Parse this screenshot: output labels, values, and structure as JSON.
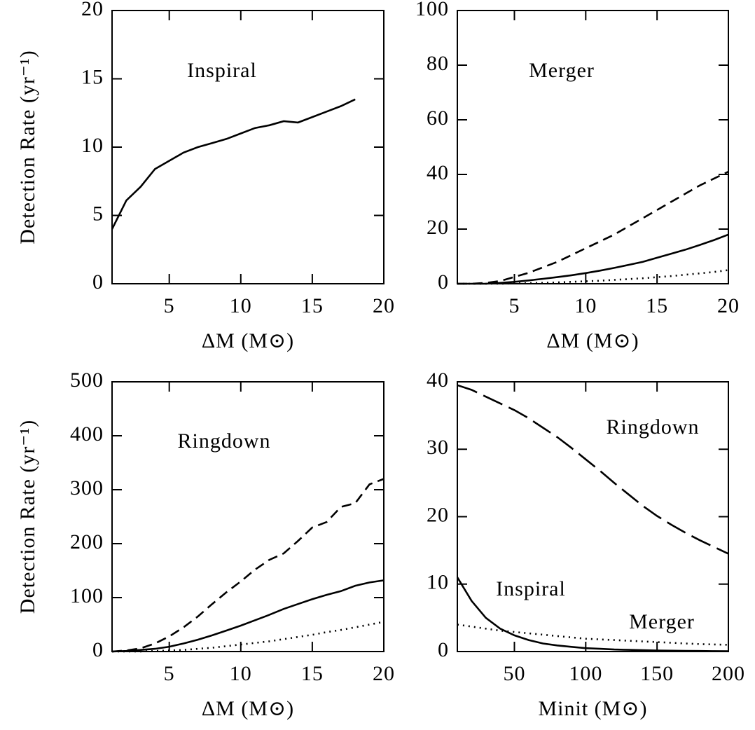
{
  "chart_data": [
    {
      "type": "line",
      "ylabel": "Detection Rate (yr⁻¹)",
      "xlabel": "ΔM (M⊙)",
      "annotations": [
        "Inspiral"
      ],
      "xlim": [
        1,
        20
      ],
      "ylim": [
        0,
        20
      ],
      "xticks": [
        5,
        10,
        15,
        20
      ],
      "yticks": [
        0,
        5,
        10,
        15,
        20
      ],
      "x": [
        1,
        2,
        3,
        4,
        5,
        6,
        7,
        8,
        9,
        10,
        11,
        12,
        13,
        14,
        15,
        16,
        17,
        18
      ],
      "series": [
        {
          "color": "#000000",
          "dash": "solid",
          "values": [
            4,
            6.1,
            7.1,
            8.4,
            9.0,
            9.6,
            10.0,
            10.3,
            10.6,
            11.0,
            11.4,
            11.6,
            11.9,
            11.8,
            12.2,
            12.6,
            13.0,
            13.5
          ]
        }
      ]
    },
    {
      "type": "line",
      "xlabel": "ΔM (M⊙)",
      "annotations": [
        "Merger"
      ],
      "xlim": [
        1,
        20
      ],
      "ylim": [
        0,
        100
      ],
      "xticks": [
        5,
        10,
        15,
        20
      ],
      "yticks": [
        0,
        20,
        40,
        60,
        80,
        100
      ],
      "x": [
        1,
        2,
        3,
        4,
        5,
        6,
        7,
        8,
        9,
        10,
        11,
        12,
        13,
        14,
        15,
        16,
        17,
        18,
        19,
        20
      ],
      "series": [
        {
          "color": "#000000",
          "dash": "dashed",
          "values": [
            0,
            0,
            0.3,
            1,
            2.5,
            4,
            6,
            8,
            10.5,
            13,
            15.5,
            18,
            21,
            24,
            27,
            30,
            33,
            36,
            38.5,
            41
          ]
        },
        {
          "color": "#000000",
          "dash": "solid",
          "values": [
            0,
            0,
            0,
            0.3,
            0.7,
            1.2,
            1.8,
            2.4,
            3.1,
            3.9,
            4.8,
            5.8,
            6.9,
            8,
            9.5,
            11,
            12.5,
            14.2,
            16,
            18
          ]
        },
        {
          "color": "#000000",
          "dash": "dotted",
          "values": [
            0,
            0,
            0,
            0,
            0.1,
            0.2,
            0.3,
            0.5,
            0.7,
            0.9,
            1.1,
            1.4,
            1.7,
            2,
            2.4,
            2.8,
            3.3,
            3.8,
            4.3,
            5
          ]
        }
      ]
    },
    {
      "type": "line",
      "ylabel": "Detection Rate (yr⁻¹)",
      "xlabel": "ΔM (M⊙)",
      "annotations": [
        "Ringdown"
      ],
      "xlim": [
        1,
        20
      ],
      "ylim": [
        0,
        500
      ],
      "xticks": [
        5,
        10,
        15,
        20
      ],
      "yticks": [
        0,
        100,
        200,
        300,
        400,
        500
      ],
      "x": [
        1,
        2,
        3,
        4,
        5,
        6,
        7,
        8,
        9,
        10,
        11,
        12,
        13,
        14,
        15,
        16,
        17,
        18,
        19,
        20
      ],
      "series": [
        {
          "color": "#000000",
          "dash": "dashed",
          "values": [
            0,
            2,
            6,
            15,
            28,
            45,
            65,
            88,
            110,
            130,
            152,
            170,
            182,
            205,
            230,
            240,
            268,
            275,
            310,
            320
          ]
        },
        {
          "color": "#000000",
          "dash": "solid",
          "values": [
            0,
            1,
            3,
            5,
            9,
            15,
            22,
            30,
            39,
            48,
            58,
            68,
            79,
            88,
            97,
            105,
            112,
            122,
            128,
            132
          ]
        },
        {
          "color": "#000000",
          "dash": "dotted",
          "values": [
            0,
            0,
            0,
            1,
            2,
            3,
            5,
            7,
            10,
            13,
            16,
            19,
            23,
            27,
            31,
            36,
            40,
            45,
            50,
            55
          ]
        }
      ]
    },
    {
      "type": "line",
      "xlabel": "Minit (M⊙)",
      "annotations": [
        "Ringdown",
        "Inspiral",
        "Merger"
      ],
      "xlim": [
        10,
        200
      ],
      "ylim": [
        0,
        40
      ],
      "xticks": [
        50,
        100,
        150,
        200
      ],
      "yticks": [
        0,
        10,
        20,
        30,
        40
      ],
      "x": [
        10,
        20,
        30,
        40,
        50,
        60,
        70,
        80,
        90,
        100,
        110,
        120,
        130,
        140,
        150,
        160,
        170,
        180,
        190,
        200
      ],
      "series": [
        {
          "color": "#000000",
          "dash": "longdash",
          "values": [
            39.5,
            38.8,
            37.8,
            36.8,
            35.8,
            34.6,
            33.2,
            31.8,
            30.2,
            28.5,
            26.8,
            25,
            23.3,
            21.6,
            20.1,
            18.8,
            17.6,
            16.5,
            15.5,
            14.5
          ]
        },
        {
          "color": "#000000",
          "dash": "solid",
          "values": [
            11,
            7.5,
            5,
            3.4,
            2.4,
            1.7,
            1.2,
            0.9,
            0.7,
            0.5,
            0.4,
            0.3,
            0.25,
            0.2,
            0.15,
            0.12,
            0.1,
            0.08,
            0.06,
            0.05
          ]
        },
        {
          "color": "#000000",
          "dash": "dotted",
          "values": [
            4,
            3.7,
            3.4,
            3.1,
            2.9,
            2.7,
            2.5,
            2.3,
            2.1,
            1.9,
            1.8,
            1.7,
            1.6,
            1.5,
            1.4,
            1.3,
            1.2,
            1.1,
            1.05,
            1.0
          ]
        }
      ]
    }
  ]
}
